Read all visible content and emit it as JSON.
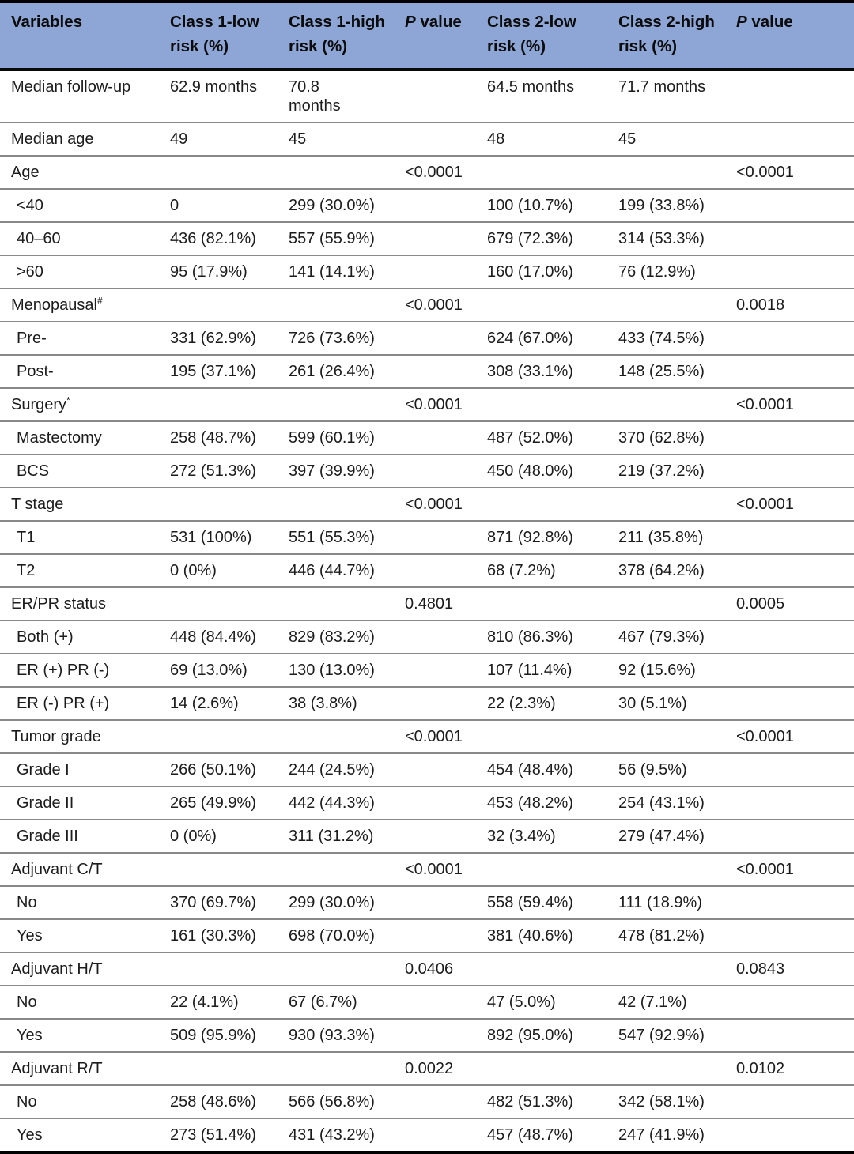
{
  "colors": {
    "header_background": "#8EA6D5",
    "heavy_rule": "#000000",
    "row_rule": "#888888",
    "text": "#1c1c1c"
  },
  "table": {
    "header": [
      {
        "label": "Variables"
      },
      {
        "label": "Class 1-low\nrisk (%)"
      },
      {
        "label": "Class 1-high\nrisk (%)"
      },
      {
        "italic": "P",
        "label": " value"
      },
      {
        "label": "Class 2-low\nrisk (%)"
      },
      {
        "label": "Class 2-high\nrisk (%)"
      },
      {
        "italic": "P",
        "label": " value"
      }
    ],
    "rows": [
      {
        "label": "Median follow-up",
        "indent": false,
        "cells": [
          "62.9 months",
          "70.8\nmonths",
          "",
          "64.5 months",
          "71.7 months",
          ""
        ]
      },
      {
        "label": "Median age",
        "indent": false,
        "cells": [
          "49",
          "45",
          "",
          "48",
          "45",
          ""
        ]
      },
      {
        "label": "Age",
        "indent": false,
        "cells": [
          "",
          "",
          "<0.0001",
          "",
          "",
          "<0.0001"
        ]
      },
      {
        "label": "<40",
        "indent": true,
        "cells": [
          "0",
          "299 (30.0%)",
          "",
          "100 (10.7%)",
          "199 (33.8%)",
          ""
        ]
      },
      {
        "label": "40–60",
        "indent": true,
        "cells": [
          "436 (82.1%)",
          "557 (55.9%)",
          "",
          "679 (72.3%)",
          "314 (53.3%)",
          ""
        ]
      },
      {
        "label": ">60",
        "indent": true,
        "cells": [
          "95 (17.9%)",
          "141 (14.1%)",
          "",
          "160 (17.0%)",
          "76 (12.9%)",
          ""
        ]
      },
      {
        "label": "Menopausal",
        "sup": "#",
        "indent": false,
        "cells": [
          "",
          "",
          "<0.0001",
          "",
          "",
          "0.0018"
        ]
      },
      {
        "label": "Pre-",
        "indent": true,
        "cells": [
          "331 (62.9%)",
          "726 (73.6%)",
          "",
          "624 (67.0%)",
          "433 (74.5%)",
          ""
        ]
      },
      {
        "label": "Post-",
        "indent": true,
        "cells": [
          "195 (37.1%)",
          "261 (26.4%)",
          "",
          "308 (33.1%)",
          "148 (25.5%)",
          ""
        ]
      },
      {
        "label": "Surgery",
        "sup": "*",
        "indent": false,
        "cells": [
          "",
          "",
          "<0.0001",
          "",
          "",
          "<0.0001"
        ]
      },
      {
        "label": "Mastectomy",
        "indent": true,
        "cells": [
          "258 (48.7%)",
          "599 (60.1%)",
          "",
          "487 (52.0%)",
          "370 (62.8%)",
          ""
        ]
      },
      {
        "label": "BCS",
        "indent": true,
        "cells": [
          "272 (51.3%)",
          "397 (39.9%)",
          "",
          "450 (48.0%)",
          "219 (37.2%)",
          ""
        ]
      },
      {
        "label": "T stage",
        "indent": false,
        "cells": [
          "",
          "",
          "<0.0001",
          "",
          "",
          "<0.0001"
        ]
      },
      {
        "label": "T1",
        "indent": true,
        "cells": [
          "531 (100%)",
          "551 (55.3%)",
          "",
          "871 (92.8%)",
          "211 (35.8%)",
          ""
        ]
      },
      {
        "label": "T2",
        "indent": true,
        "cells": [
          "0 (0%)",
          "446 (44.7%)",
          "",
          "68 (7.2%)",
          "378 (64.2%)",
          ""
        ]
      },
      {
        "label": "ER/PR status",
        "indent": false,
        "cells": [
          "",
          "",
          "0.4801",
          "",
          "",
          "0.0005"
        ]
      },
      {
        "label": "Both (+)",
        "indent": true,
        "cells": [
          "448 (84.4%)",
          "829 (83.2%)",
          "",
          "810 (86.3%)",
          "467 (79.3%)",
          ""
        ]
      },
      {
        "label": "ER (+) PR (-)",
        "indent": true,
        "cells": [
          "69 (13.0%)",
          "130 (13.0%)",
          "",
          "107 (11.4%)",
          "92 (15.6%)",
          ""
        ]
      },
      {
        "label": "ER (-) PR (+)",
        "indent": true,
        "cells": [
          "14 (2.6%)",
          "38 (3.8%)",
          "",
          "22 (2.3%)",
          "30 (5.1%)",
          ""
        ]
      },
      {
        "label": "Tumor grade",
        "indent": false,
        "cells": [
          "",
          "",
          "<0.0001",
          "",
          "",
          "<0.0001"
        ]
      },
      {
        "label": "Grade I",
        "indent": true,
        "cells": [
          "266 (50.1%)",
          "244 (24.5%)",
          "",
          "454 (48.4%)",
          "56 (9.5%)",
          ""
        ]
      },
      {
        "label": "Grade II",
        "indent": true,
        "cells": [
          "265 (49.9%)",
          "442 (44.3%)",
          "",
          "453 (48.2%)",
          "254 (43.1%)",
          ""
        ]
      },
      {
        "label": "Grade III",
        "indent": true,
        "cells": [
          "0 (0%)",
          "311 (31.2%)",
          "",
          "32 (3.4%)",
          "279 (47.4%)",
          ""
        ]
      },
      {
        "label": "Adjuvant C/T",
        "indent": false,
        "cells": [
          "",
          "",
          "<0.0001",
          "",
          "",
          "<0.0001"
        ]
      },
      {
        "label": "No",
        "indent": true,
        "cells": [
          "370 (69.7%)",
          "299 (30.0%)",
          "",
          "558 (59.4%)",
          "111 (18.9%)",
          ""
        ]
      },
      {
        "label": "Yes",
        "indent": true,
        "cells": [
          "161 (30.3%)",
          "698 (70.0%)",
          "",
          "381 (40.6%)",
          "478 (81.2%)",
          ""
        ]
      },
      {
        "label": "Adjuvant H/T",
        "indent": false,
        "cells": [
          "",
          "",
          "0.0406",
          "",
          "",
          "0.0843"
        ]
      },
      {
        "label": "No",
        "indent": true,
        "cells": [
          "22 (4.1%)",
          "67 (6.7%)",
          "",
          "47 (5.0%)",
          "42 (7.1%)",
          ""
        ]
      },
      {
        "label": "Yes",
        "indent": true,
        "cells": [
          "509 (95.9%)",
          "930 (93.3%)",
          "",
          "892 (95.0%)",
          "547 (92.9%)",
          ""
        ]
      },
      {
        "label": "Adjuvant R/T",
        "indent": false,
        "cells": [
          "",
          "",
          "0.0022",
          "",
          "",
          "0.0102"
        ]
      },
      {
        "label": "No",
        "indent": true,
        "cells": [
          "258 (48.6%)",
          "566 (56.8%)",
          "",
          "482 (51.3%)",
          "342 (58.1%)",
          ""
        ]
      },
      {
        "label": "Yes",
        "indent": true,
        "cells": [
          "273 (51.4%)",
          "431 (43.2%)",
          "",
          "457 (48.7%)",
          "247 (41.9%)",
          ""
        ]
      }
    ]
  }
}
